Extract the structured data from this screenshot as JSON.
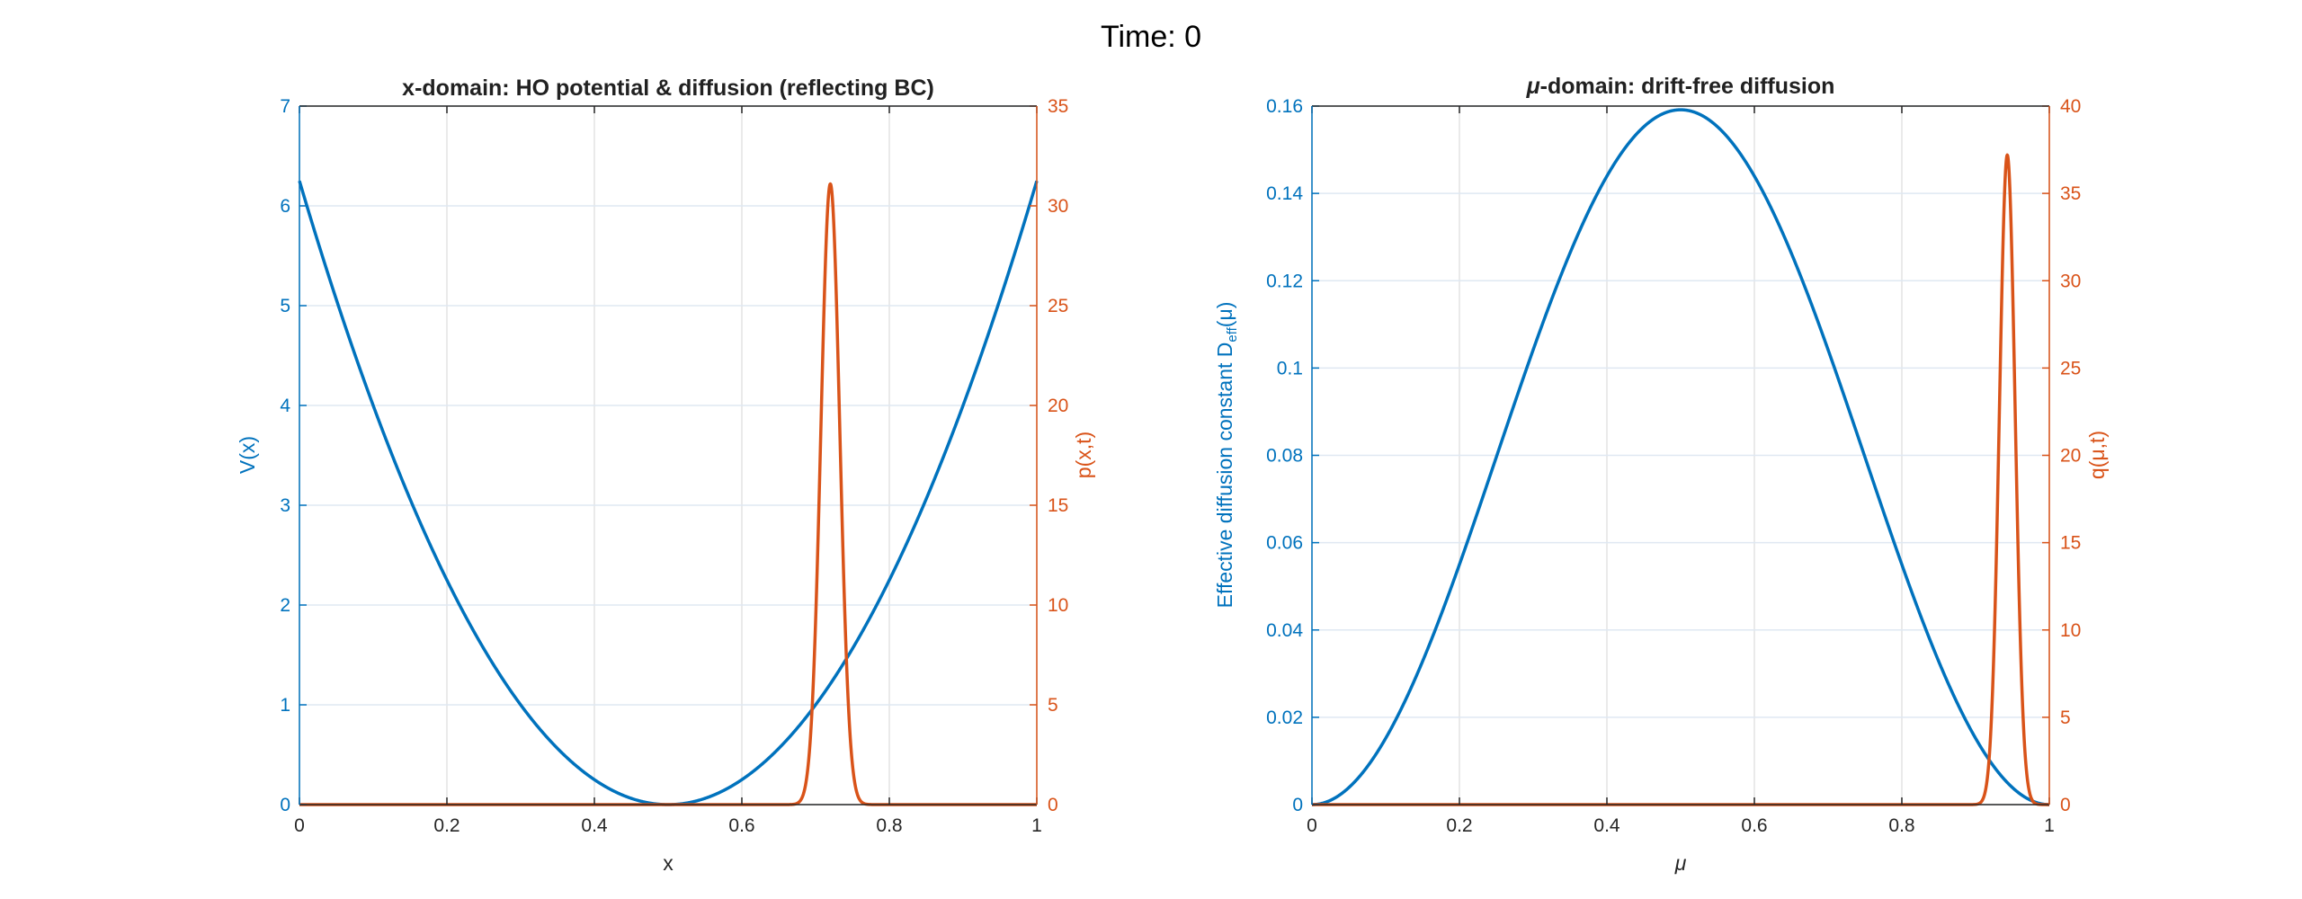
{
  "suptitle": "Time: 0",
  "colors": {
    "left_series": "#0072BD",
    "right_series": "#D95319",
    "grid": "#dfe8f2",
    "axis": "#262626"
  },
  "chart_data": [
    {
      "type": "line",
      "title": "x-domain: HO potential & diffusion (reflecting BC)",
      "xlabel": "x",
      "ylabel_left": "V(x)",
      "ylabel_right": "p(x,t)",
      "xlim": [
        0,
        1
      ],
      "ylim_left": [
        0,
        7
      ],
      "ylim_right": [
        0,
        35
      ],
      "xticks": [
        "0",
        "0.2",
        "0.4",
        "0.6",
        "0.8",
        "1"
      ],
      "yticks_left": [
        "0",
        "1",
        "2",
        "3",
        "4",
        "5",
        "6",
        "7"
      ],
      "yticks_right": [
        "0",
        "5",
        "10",
        "15",
        "20",
        "25",
        "30",
        "35"
      ],
      "grid": true,
      "series": [
        {
          "name": "V(x)",
          "axis": "left",
          "formula": "25*(x-0.5)^2",
          "points": {
            "x": [
              0,
              0.1,
              0.2,
              0.3,
              0.4,
              0.5,
              0.6,
              0.7,
              0.8,
              0.9,
              1
            ],
            "y": [
              6.25,
              4,
              2.25,
              1,
              0.25,
              0,
              0.25,
              1,
              2.25,
              4,
              6.25
            ]
          }
        },
        {
          "name": "p(x,t)",
          "axis": "right",
          "formula": "gaussian",
          "mean": 0.72,
          "peak": 31.1,
          "sigma": 0.0128
        }
      ]
    },
    {
      "type": "line",
      "title_symbol": "μ",
      "title": "-domain:  drift-free  diffusion",
      "xlabel": "μ",
      "ylabel_left": "Effective  diffusion  constant  D",
      "ylabel_left_sub": "eff",
      "ylabel_left_tail": "(μ)",
      "ylabel_right": "q(μ,t)",
      "xlim": [
        0,
        1
      ],
      "ylim_left": [
        0,
        0.16
      ],
      "ylim_right": [
        0,
        40
      ],
      "xticks": [
        "0",
        "0.2",
        "0.4",
        "0.6",
        "0.8",
        "1"
      ],
      "yticks_left": [
        "0",
        "0.02",
        "0.04",
        "0.06",
        "0.08",
        "0.1",
        "0.12",
        "0.14",
        "0.16"
      ],
      "yticks_right": [
        "0",
        "5",
        "10",
        "15",
        "20",
        "25",
        "30",
        "35",
        "40"
      ],
      "grid": true,
      "series": [
        {
          "name": "Deff(μ)",
          "axis": "left",
          "formula": "sin(pi*mu)^2/(2*pi)",
          "points": {
            "x": [
              0,
              0.1,
              0.2,
              0.3,
              0.4,
              0.5,
              0.6,
              0.7,
              0.8,
              0.9,
              1
            ],
            "y": [
              0,
              0.0152,
              0.055,
              0.104,
              0.144,
              0.159,
              0.144,
              0.104,
              0.055,
              0.0152,
              0
            ]
          }
        },
        {
          "name": "q(μ,t)",
          "axis": "right",
          "formula": "gaussian",
          "mean": 0.943,
          "peak": 37.2,
          "sigma": 0.0107
        }
      ]
    }
  ]
}
